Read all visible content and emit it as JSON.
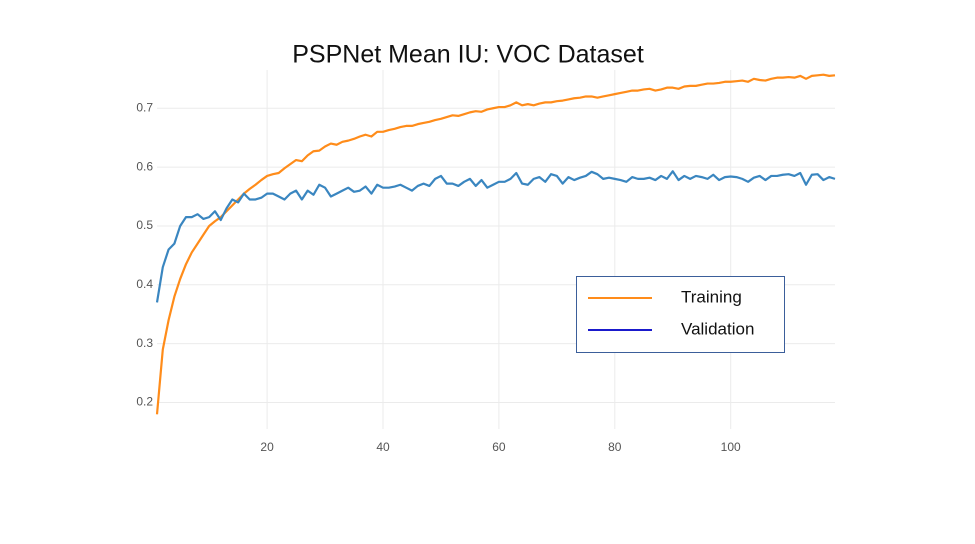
{
  "chart_data": {
    "type": "line",
    "title": "PSPNet Mean IU: VOC Dataset",
    "x": [
      1,
      2,
      3,
      4,
      5,
      6,
      7,
      8,
      9,
      10,
      11,
      12,
      13,
      14,
      15,
      16,
      17,
      18,
      19,
      20,
      21,
      22,
      23,
      24,
      25,
      26,
      27,
      28,
      29,
      30,
      31,
      32,
      33,
      34,
      35,
      36,
      37,
      38,
      39,
      40,
      41,
      42,
      43,
      44,
      45,
      46,
      47,
      48,
      49,
      50,
      51,
      52,
      53,
      54,
      55,
      56,
      57,
      58,
      59,
      60,
      61,
      62,
      63,
      64,
      65,
      66,
      67,
      68,
      69,
      70,
      71,
      72,
      73,
      74,
      75,
      76,
      77,
      78,
      79,
      80,
      81,
      82,
      83,
      84,
      85,
      86,
      87,
      88,
      89,
      90,
      91,
      92,
      93,
      94,
      95,
      96,
      97,
      98,
      99,
      100,
      101,
      102,
      103,
      104,
      105,
      106,
      107,
      108,
      109,
      110,
      111,
      112,
      113,
      114,
      115,
      116,
      117,
      118
    ],
    "series": [
      {
        "name": "Training",
        "color": "#ff8c1a",
        "legend_color": "#ff8c1a",
        "values": [
          0.18,
          0.29,
          0.34,
          0.38,
          0.41,
          0.435,
          0.455,
          0.47,
          0.485,
          0.5,
          0.508,
          0.515,
          0.525,
          0.535,
          0.545,
          0.555,
          0.563,
          0.57,
          0.578,
          0.585,
          0.588,
          0.59,
          0.598,
          0.605,
          0.612,
          0.61,
          0.62,
          0.627,
          0.628,
          0.635,
          0.64,
          0.638,
          0.643,
          0.645,
          0.648,
          0.652,
          0.655,
          0.652,
          0.66,
          0.66,
          0.663,
          0.665,
          0.668,
          0.67,
          0.67,
          0.673,
          0.675,
          0.677,
          0.68,
          0.682,
          0.685,
          0.688,
          0.687,
          0.69,
          0.693,
          0.695,
          0.694,
          0.698,
          0.7,
          0.702,
          0.702,
          0.705,
          0.71,
          0.705,
          0.707,
          0.705,
          0.708,
          0.71,
          0.71,
          0.712,
          0.713,
          0.715,
          0.717,
          0.718,
          0.72,
          0.72,
          0.718,
          0.72,
          0.722,
          0.724,
          0.726,
          0.728,
          0.73,
          0.73,
          0.732,
          0.733,
          0.73,
          0.732,
          0.735,
          0.735,
          0.733,
          0.737,
          0.738,
          0.738,
          0.74,
          0.742,
          0.742,
          0.743,
          0.745,
          0.745,
          0.746,
          0.747,
          0.745,
          0.75,
          0.748,
          0.747,
          0.75,
          0.752,
          0.752,
          0.753,
          0.752,
          0.755,
          0.75,
          0.755,
          0.756,
          0.757,
          0.755,
          0.756
        ]
      },
      {
        "name": "Validation",
        "color": "#3a86c0",
        "legend_color": "#1a1acc",
        "values": [
          0.37,
          0.43,
          0.46,
          0.47,
          0.5,
          0.515,
          0.515,
          0.52,
          0.512,
          0.515,
          0.525,
          0.51,
          0.53,
          0.545,
          0.54,
          0.555,
          0.545,
          0.545,
          0.548,
          0.555,
          0.555,
          0.55,
          0.545,
          0.555,
          0.56,
          0.545,
          0.56,
          0.553,
          0.57,
          0.565,
          0.55,
          0.555,
          0.56,
          0.565,
          0.558,
          0.56,
          0.567,
          0.555,
          0.57,
          0.565,
          0.565,
          0.567,
          0.57,
          0.565,
          0.56,
          0.568,
          0.572,
          0.568,
          0.58,
          0.585,
          0.572,
          0.572,
          0.568,
          0.575,
          0.58,
          0.568,
          0.578,
          0.565,
          0.57,
          0.575,
          0.575,
          0.58,
          0.59,
          0.572,
          0.57,
          0.58,
          0.583,
          0.575,
          0.588,
          0.585,
          0.572,
          0.583,
          0.578,
          0.582,
          0.585,
          0.592,
          0.588,
          0.58,
          0.582,
          0.58,
          0.578,
          0.575,
          0.583,
          0.58,
          0.58,
          0.582,
          0.578,
          0.585,
          0.58,
          0.593,
          0.578,
          0.585,
          0.58,
          0.585,
          0.583,
          0.58,
          0.587,
          0.578,
          0.583,
          0.584,
          0.583,
          0.58,
          0.575,
          0.582,
          0.585,
          0.578,
          0.585,
          0.585,
          0.587,
          0.588,
          0.585,
          0.59,
          0.57,
          0.587,
          0.588,
          0.578,
          0.583,
          0.58
        ]
      }
    ],
    "xlim": [
      1,
      118
    ],
    "ylim": [
      0.155,
      0.765
    ],
    "xticks": [
      20,
      40,
      60,
      80,
      100
    ],
    "yticks": [
      0.2,
      0.3,
      0.4,
      0.5,
      0.6,
      0.7
    ],
    "grid": true
  }
}
